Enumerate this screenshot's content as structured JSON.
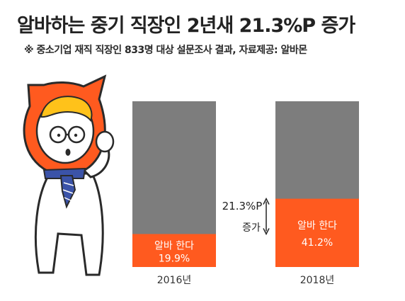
{
  "header": {
    "title": "알바하는 중기 직장인 2년새 21.3%P 증가",
    "subtitle": "※ 중소기업 재직 직장인 833명 대상 설문조사 결과, 자료제공: 알바몬"
  },
  "colors": {
    "bar_total": "#7d7d7d",
    "bar_share": "#ff5a1f",
    "text_dark": "#222222",
    "mascot_orange": "#ff5a1f",
    "tie_blue": "#3b53a8"
  },
  "chart_data": {
    "type": "bar",
    "stacked": true,
    "categories": [
      "2016년",
      "2018년"
    ],
    "series": [
      {
        "name": "알바 한다",
        "values": [
          19.9,
          41.2
        ],
        "labels": [
          "19.9%",
          "41.2%"
        ]
      }
    ],
    "ylim": [
      0,
      100
    ],
    "grid": false,
    "annotation": {
      "line1": "21.3%P",
      "line2": "증가"
    }
  }
}
